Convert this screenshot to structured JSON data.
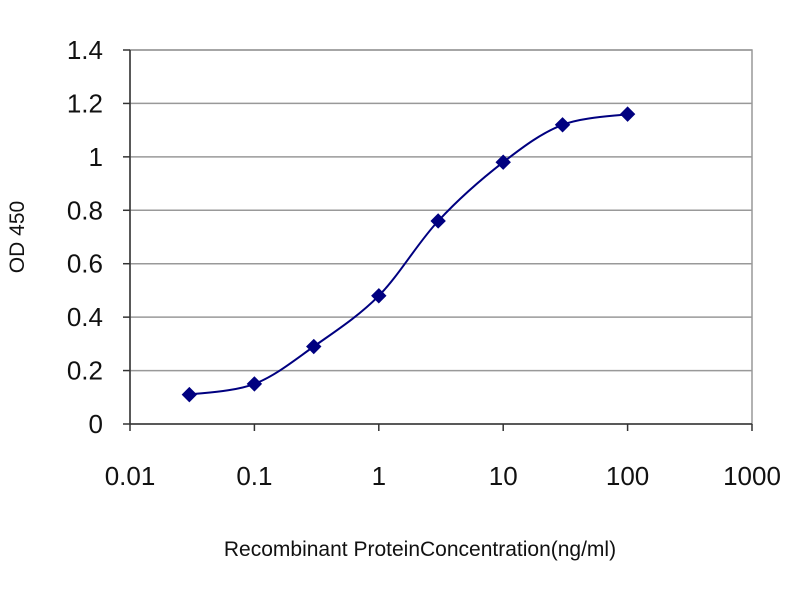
{
  "chart_data": {
    "type": "line",
    "title": "",
    "xlabel": "Recombinant ProteinConcentration(ng/ml)",
    "ylabel": "OD 450",
    "x_scale": "log",
    "xlim": [
      0.01,
      1000
    ],
    "ylim": [
      0,
      1.4
    ],
    "x_ticks": [
      "0.01",
      "0.1",
      "1",
      "10",
      "100",
      "1000"
    ],
    "y_ticks": [
      "0",
      "0.2",
      "0.4",
      "0.6",
      "0.8",
      "1",
      "1.2",
      "1.4"
    ],
    "grid": true,
    "legend": "none",
    "series": [
      {
        "color": "#000080",
        "marker": "diamond",
        "x": [
          0.03,
          0.1,
          0.3,
          1,
          3,
          10,
          30,
          100
        ],
        "y": [
          0.11,
          0.15,
          0.29,
          0.48,
          0.76,
          0.98,
          1.12,
          1.16
        ]
      }
    ]
  }
}
